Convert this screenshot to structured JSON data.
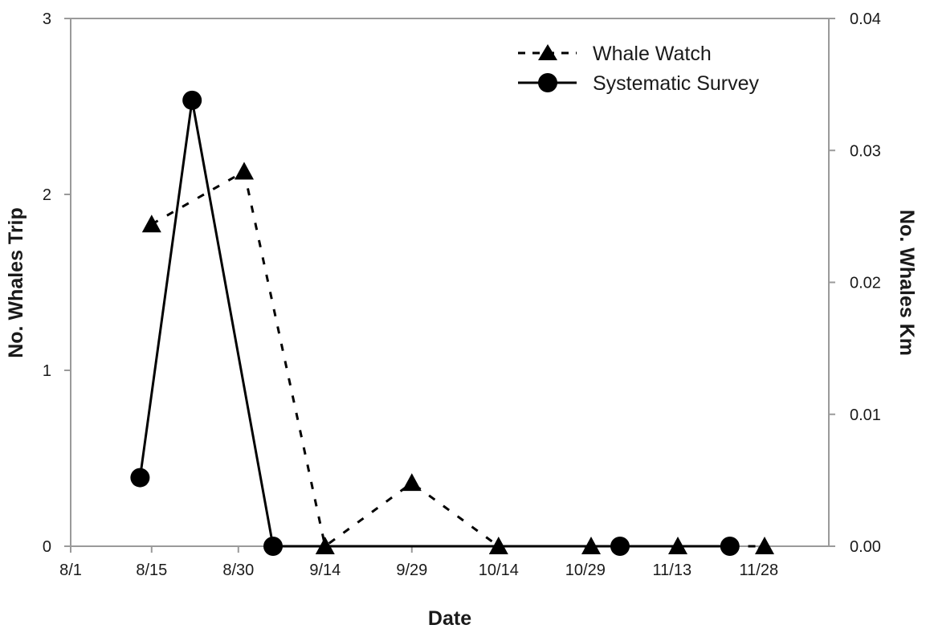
{
  "chart_data": {
    "type": "line",
    "xlabel": "Date",
    "ylabel_left": "No. Whales Trip",
    "ylabel_right": "No. Whales Km",
    "x_ticks": [
      "8/1",
      "8/15",
      "8/30",
      "9/14",
      "9/29",
      "10/14",
      "10/29",
      "11/13",
      "11/28"
    ],
    "ylim_left": [
      0,
      3
    ],
    "yticks_left": [
      "0",
      "1",
      "2",
      "3"
    ],
    "ylim_right": [
      0,
      0.04
    ],
    "yticks_right": [
      "0.00",
      "0.01",
      "0.02",
      "0.03",
      "0.04"
    ],
    "grid": false,
    "legend_position": "top-right",
    "series": [
      {
        "name": "Whale Watch",
        "axis": "left",
        "marker": "triangle",
        "line_style": "dashed",
        "x": [
          "8/15",
          "8/31",
          "9/14",
          "9/29",
          "10/14",
          "10/30",
          "11/14",
          "11/29"
        ],
        "y": [
          1.83,
          2.13,
          0,
          0.36,
          0,
          0,
          0,
          0
        ]
      },
      {
        "name": "Systematic Survey",
        "axis": "right",
        "marker": "circle",
        "line_style": "solid",
        "x": [
          "8/13",
          "8/22",
          "9/5",
          "11/4",
          "11/23"
        ],
        "y": [
          0.0052,
          0.0338,
          0,
          0,
          0
        ]
      }
    ]
  }
}
